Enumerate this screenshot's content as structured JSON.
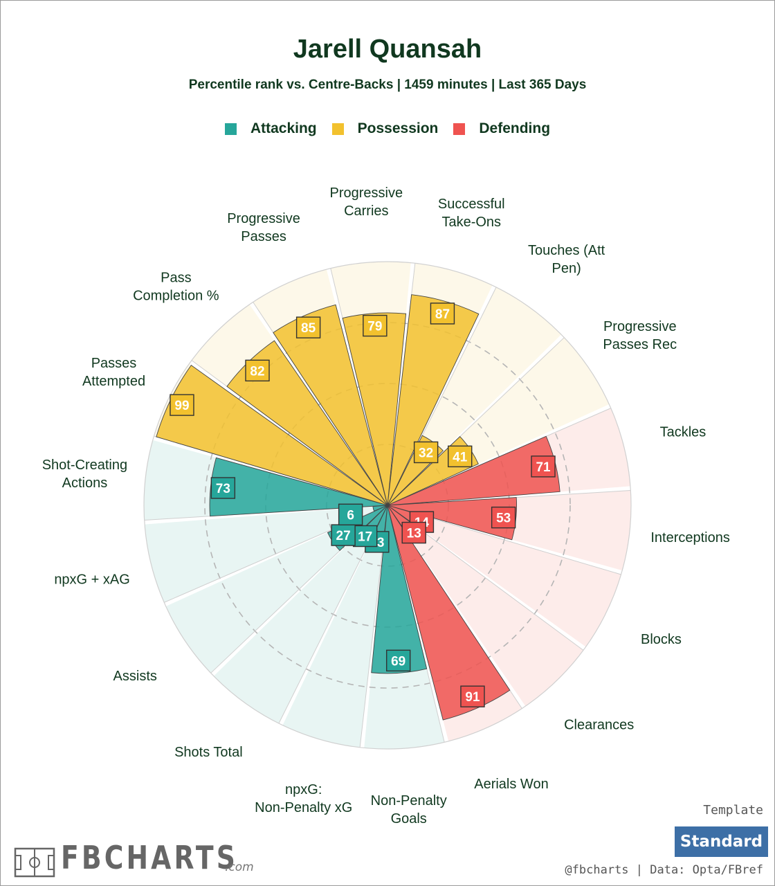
{
  "title": "Jarell Quansah",
  "subtitle": "Percentile rank vs. Centre-Backs | 1459 minutes | Last 365 Days",
  "legend": [
    {
      "label": "Attacking",
      "color": "#26a69a"
    },
    {
      "label": "Possession",
      "color": "#f2c12e"
    },
    {
      "label": "Defending",
      "color": "#ef5350"
    }
  ],
  "chart_data": {
    "type": "polar-bar",
    "rlim": [
      0,
      100
    ],
    "gridlines": [
      25,
      50,
      75
    ],
    "series": [
      {
        "name": "Attacking",
        "color": "#26a69a",
        "categories": [
          "Non-Penalty Goals",
          "npxG: Non-Penalty xG",
          "Shots Total",
          "Assists",
          "npxG + xAG",
          "Shot-Creating Actions"
        ],
        "values": [
          69,
          13,
          17,
          27,
          6,
          73
        ]
      },
      {
        "name": "Possession",
        "color": "#f2c12e",
        "categories": [
          "Passes Attempted",
          "Pass Completion %",
          "Progressive Passes",
          "Progressive Carries",
          "Successful Take-Ons",
          "Touches (Att Pen)",
          "Progressive Passes Rec"
        ],
        "values": [
          99,
          82,
          85,
          79,
          87,
          32,
          41
        ]
      },
      {
        "name": "Defending",
        "color": "#ef5350",
        "categories": [
          "Tackles",
          "Interceptions",
          "Blocks",
          "Clearances",
          "Aerials Won"
        ],
        "values": [
          71,
          53,
          14,
          13,
          91
        ]
      }
    ]
  },
  "template": {
    "label": "Template",
    "button": "Standard"
  },
  "branding": {
    "logo_text": "FBCHARTS",
    "logo_suffix": ".com",
    "credit": "@fbcharts | Data: Opta/FBref"
  }
}
